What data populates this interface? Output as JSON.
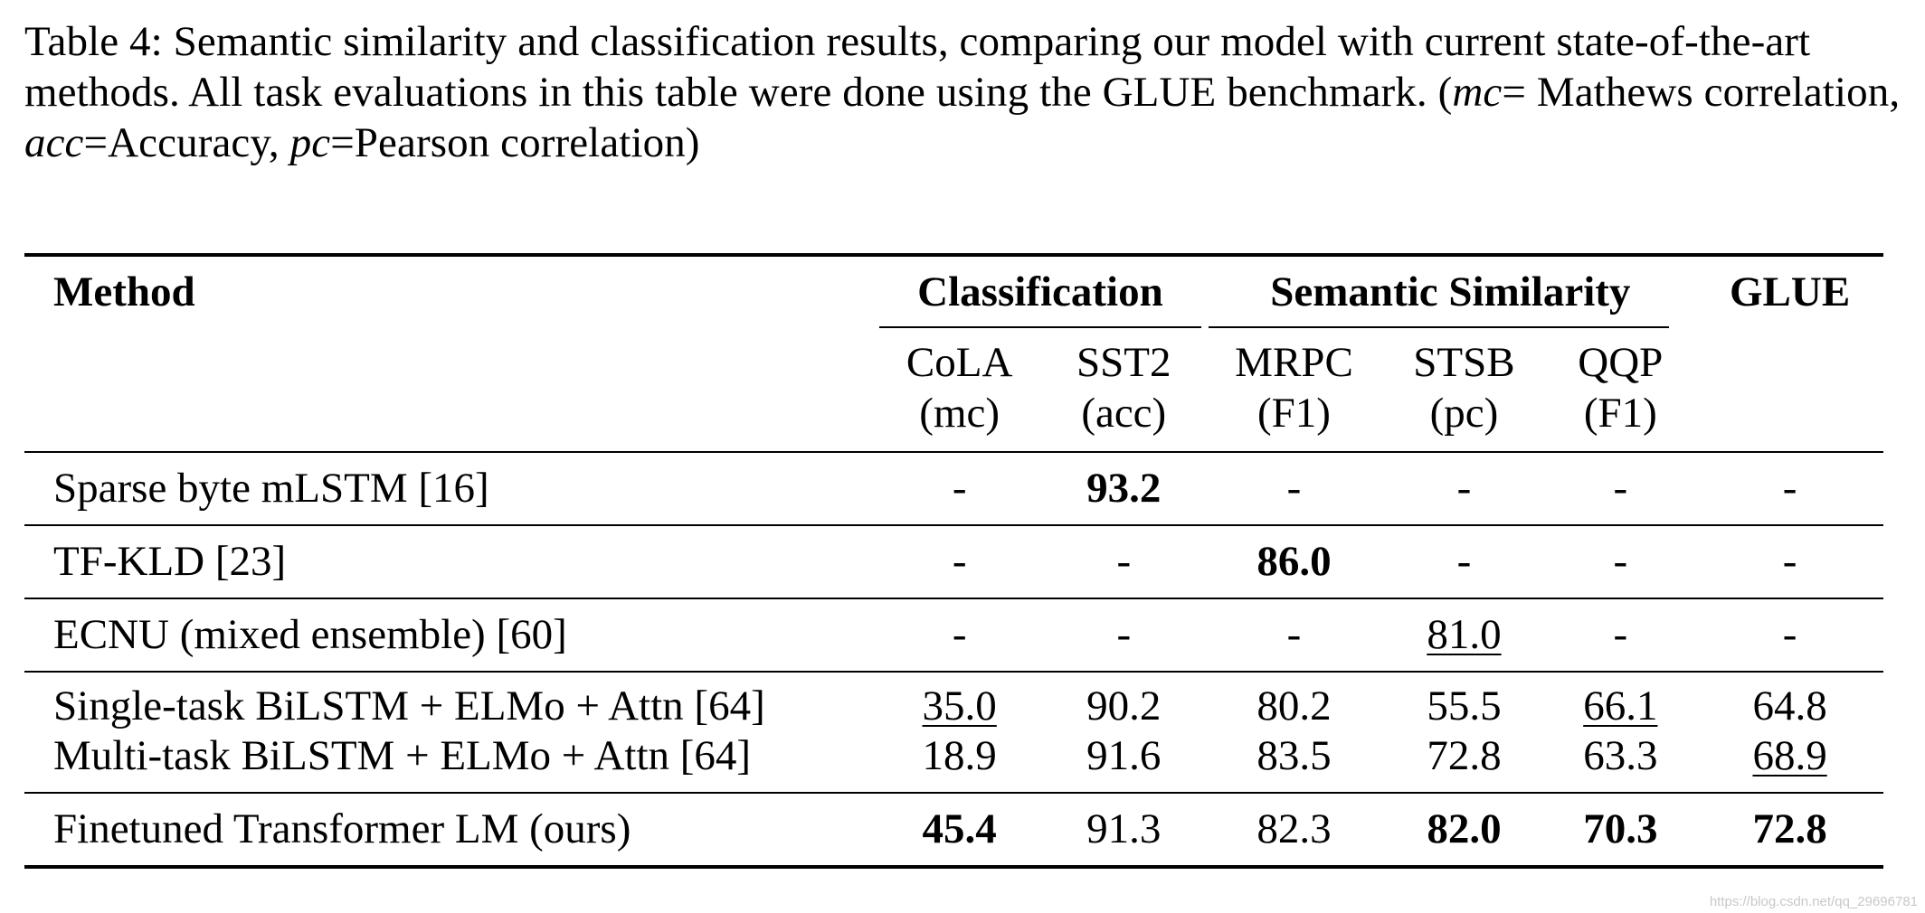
{
  "caption": {
    "label": "Table 4:",
    "text_part1": " Semantic similarity and classification results, comparing our model with current state-of-the-art methods. All task evaluations in this table were done using the GLUE benchmark. (",
    "mc_abbr": "mc",
    "mc_def": "= Mathews correlation, ",
    "acc_abbr": "acc",
    "acc_def": "=Accuracy, ",
    "pc_abbr": "pc",
    "pc_def": "=Pearson correlation)"
  },
  "table": {
    "header": {
      "method": "Method",
      "group_classification": "Classification",
      "group_semantic": "Semantic Similarity",
      "group_glue": "GLUE"
    },
    "subheaders": [
      {
        "name": "CoLA",
        "metric": "(mc)"
      },
      {
        "name": "SST2",
        "metric": "(acc)"
      },
      {
        "name": "MRPC",
        "metric": "(F1)"
      },
      {
        "name": "STSB",
        "metric": "(pc)"
      },
      {
        "name": "QQP",
        "metric": "(F1)"
      }
    ],
    "rows": [
      {
        "method": "Sparse byte mLSTM [16]",
        "values": [
          "-",
          "93.2",
          "-",
          "-",
          "-",
          "-"
        ]
      },
      {
        "method": "TF-KLD [23]",
        "values": [
          "-",
          "-",
          "86.0",
          "-",
          "-",
          "-"
        ]
      },
      {
        "method": "ECNU (mixed ensemble) [60]",
        "values": [
          "-",
          "-",
          "-",
          "81.0",
          "-",
          "-"
        ]
      },
      {
        "method": "Single-task BiLSTM + ELMo + Attn [64]",
        "values": [
          "35.0",
          "90.2",
          "80.2",
          "55.5",
          "66.1",
          "64.8"
        ]
      },
      {
        "method": "Multi-task BiLSTM + ELMo + Attn [64]",
        "values": [
          "18.9",
          "91.6",
          "83.5",
          "72.8",
          "63.3",
          "68.9"
        ]
      },
      {
        "method": "Finetuned Transformer LM (ours)",
        "values": [
          "45.4",
          "91.3",
          "82.3",
          "82.0",
          "70.3",
          "72.8"
        ]
      }
    ]
  },
  "watermark": "https://blog.csdn.net/qq_29696781"
}
